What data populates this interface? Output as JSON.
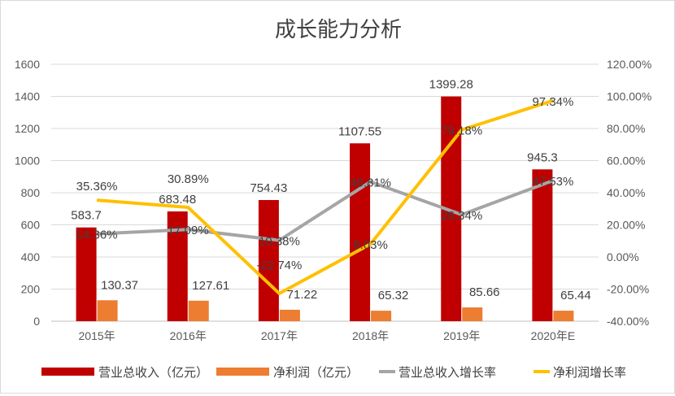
{
  "chart_data": {
    "type": "bar+line",
    "title": "成长能力分析",
    "categories": [
      "2015年",
      "2016年",
      "2017年",
      "2018年",
      "2019年",
      "2020年E"
    ],
    "left_axis": {
      "ylim": [
        0,
        1600
      ],
      "ticks": [
        "0",
        "200",
        "400",
        "600",
        "800",
        "1000",
        "1200",
        "1400",
        "1600"
      ]
    },
    "right_axis": {
      "ylim": [
        -40,
        120
      ],
      "ticks": [
        "-40.00%",
        "-20.00%",
        "0.00%",
        "20.00%",
        "40.00%",
        "60.00%",
        "80.00%",
        "100.00%",
        "120.00%"
      ]
    },
    "grid": true,
    "legend_position": "bottom",
    "series": [
      {
        "name": "营业总收入（亿元）",
        "type": "bar",
        "axis": "left",
        "color": "#c00000",
        "values": [
          583.7,
          683.48,
          754.43,
          1107.55,
          1399.28,
          945.3
        ],
        "labels": [
          "583.7",
          "683.48",
          "754.43",
          "1107.55",
          "1399.28",
          "945.3"
        ]
      },
      {
        "name": "净利润（亿元）",
        "type": "bar",
        "axis": "left",
        "color": "#ed7d31",
        "values": [
          130.37,
          127.61,
          71.22,
          65.32,
          85.66,
          65.44
        ],
        "labels": [
          "130.37",
          "127.61",
          "71.22",
          "65.32",
          "85.66",
          "65.44"
        ]
      },
      {
        "name": "营业总收入增长率",
        "type": "line",
        "axis": "right",
        "color": "#a5a5a5",
        "values": [
          14.36,
          17.09,
          10.38,
          46.81,
          26.34,
          47.53
        ],
        "labels": [
          "14.36%",
          "17.09%",
          "10.38%",
          "46.81%",
          "26.34%",
          "47.53%"
        ]
      },
      {
        "name": "净利润增长率",
        "type": "line",
        "axis": "right",
        "color": "#ffc000",
        "values": [
          35.36,
          30.89,
          -22.74,
          8.03,
          79.18,
          97.34
        ],
        "labels": [
          "35.36%",
          "30.89%",
          "-22.74%",
          "8.03%",
          "79.18%",
          "97.34%"
        ]
      }
    ]
  }
}
